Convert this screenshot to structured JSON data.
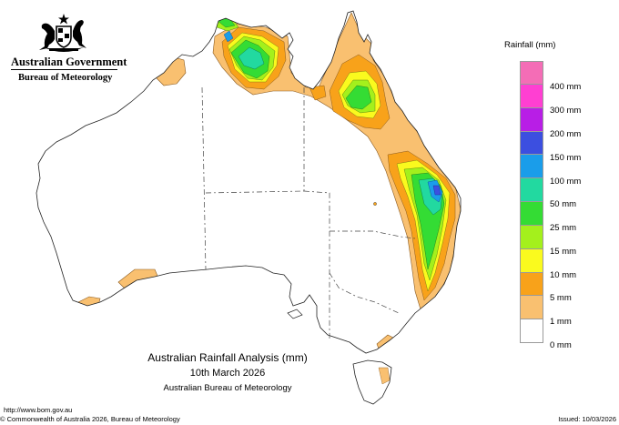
{
  "header": {
    "government": "Australian Government",
    "bureau": "Bureau of Meteorology"
  },
  "legend": {
    "title": "Rainfall (mm)",
    "items": [
      {
        "label": "",
        "color": "#f46db6"
      },
      {
        "label": "400 mm",
        "color": "#ff3fd2"
      },
      {
        "label": "300 mm",
        "color": "#b81ee6"
      },
      {
        "label": "200 mm",
        "color": "#3c4fe0"
      },
      {
        "label": "150 mm",
        "color": "#1a9dea"
      },
      {
        "label": "100 mm",
        "color": "#22d9a0"
      },
      {
        "label": "50 mm",
        "color": "#34dc34"
      },
      {
        "label": "25 mm",
        "color": "#a4f01c"
      },
      {
        "label": "15 mm",
        "color": "#fafa1e"
      },
      {
        "label": "10 mm",
        "color": "#f8a21a"
      },
      {
        "label": "5 mm",
        "color": "#f9c070"
      },
      {
        "label": "1 mm",
        "color": "#ffffff"
      },
      {
        "label": "0 mm",
        "color": "#ffffff"
      }
    ]
  },
  "titles": {
    "line1": "Australian Rainfall Analysis (mm)",
    "line2": "10th March 2026",
    "line3": "Australian Bureau of Meteorology"
  },
  "footer": {
    "url": "http://www.bom.gov.au",
    "copyright": "© Commonwealth of Australia 2026, Bureau of Meteorology",
    "issued": "Issued: 10/03/2026"
  },
  "colors": {
    "rain_1mm": "#f9c070",
    "rain_5mm": "#f8a21a",
    "rain_10mm": "#fafa1e",
    "rain_15mm": "#a4f01c",
    "rain_25mm": "#34dc34",
    "rain_50mm": "#22d9a0",
    "rain_100mm": "#1a9dea",
    "rain_150mm": "#3c4fe0"
  }
}
